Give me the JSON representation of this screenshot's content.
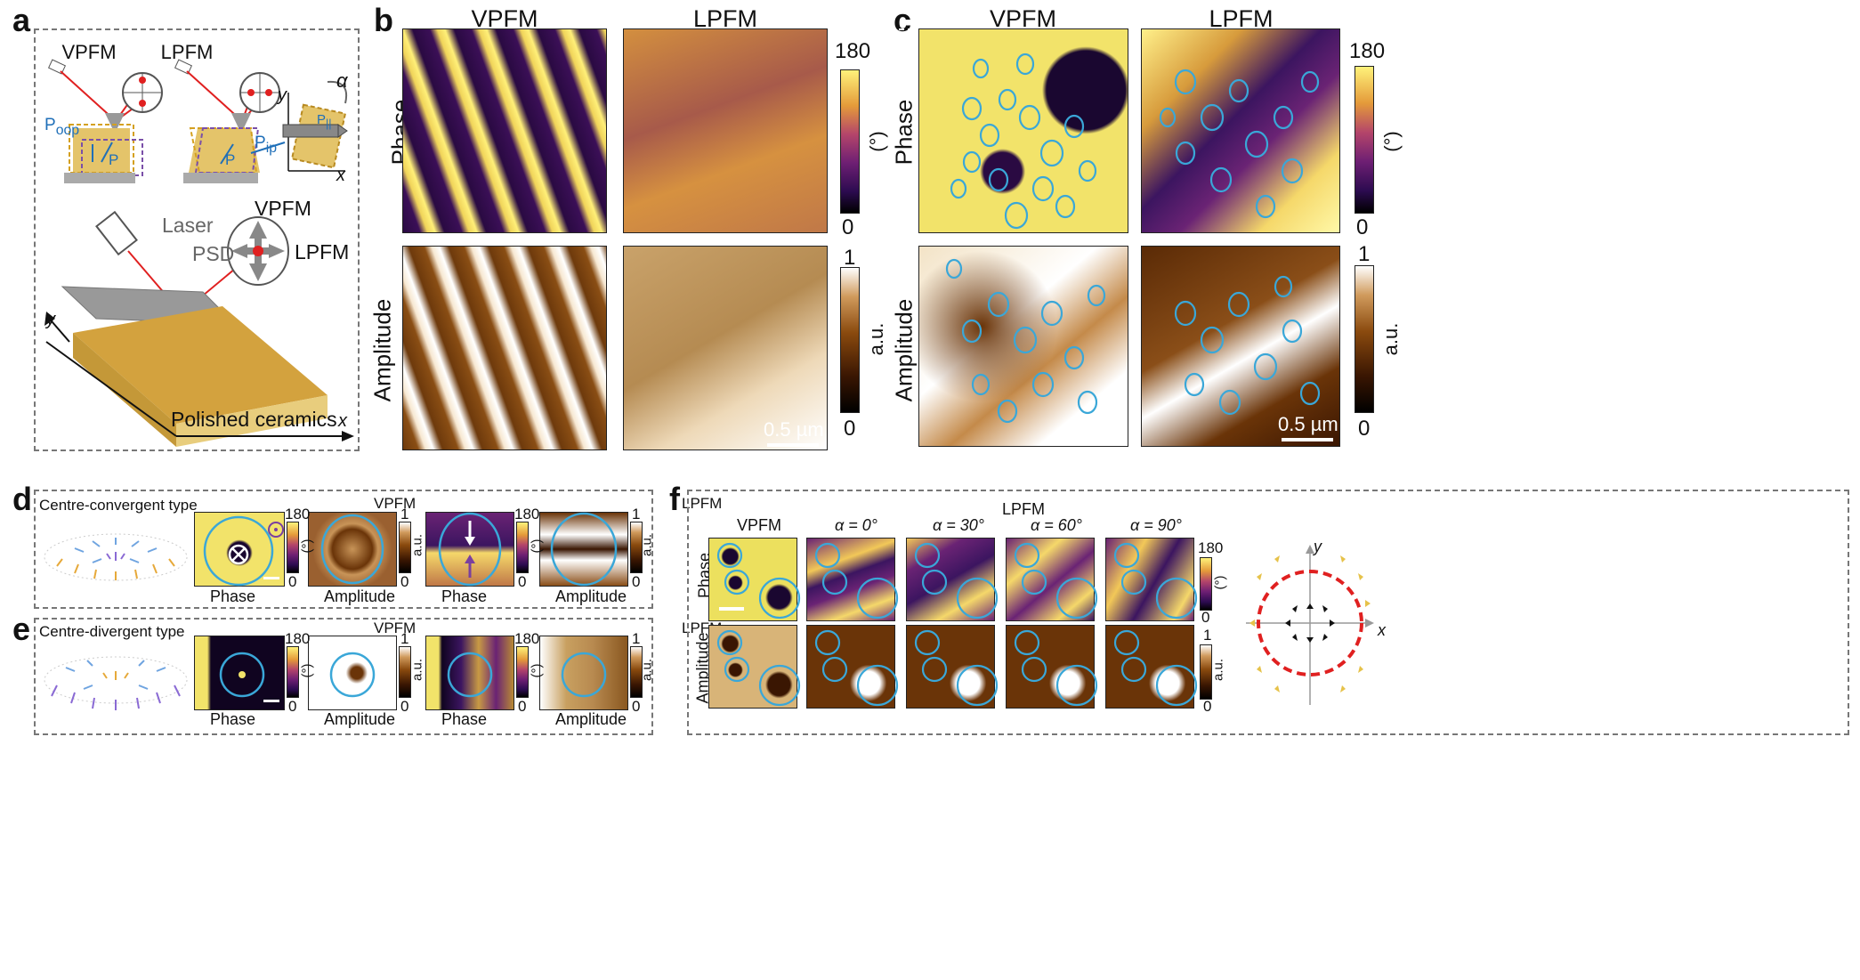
{
  "panels": {
    "a": {
      "label": "a",
      "mode_vpfm": "VPFM",
      "mode_lpfm": "LPFM",
      "p_oop": "P",
      "p_oop_sub": "oop",
      "p_ip": "P",
      "p_ip_sub": "ip",
      "p": "P",
      "p_par": "P",
      "p_par_sub": "||",
      "axis_y": "y",
      "axis_x": "x",
      "alpha": "α",
      "laser": "Laser",
      "psd": "PSD",
      "vpfm_arrow": "VPFM",
      "lpfm_arrow": "LPFM",
      "sample": "Polished ceramics",
      "axis_y2": "y",
      "axis_x2": "x"
    },
    "b": {
      "label": "b",
      "col1": "VPFM",
      "col2": "LPFM",
      "row1": "Phase",
      "row2": "Amplitude",
      "phase_max": "180",
      "phase_min": "0",
      "phase_unit": "(°)",
      "amp_max": "1",
      "amp_min": "0",
      "amp_unit": "a.u.",
      "scale": "0.5 µm"
    },
    "c": {
      "label": "c",
      "col1": "VPFM",
      "col2": "LPFM",
      "row1": "Phase",
      "row2": "Amplitude",
      "phase_max": "180",
      "phase_min": "0",
      "phase_unit": "(°)",
      "amp_max": "1",
      "amp_min": "0",
      "amp_unit": "a.u.",
      "scale": "0.5 µm"
    },
    "d": {
      "label": "d",
      "type": "Centre-convergent type",
      "vpfm": "VPFM",
      "lpfm": "LPFM",
      "phase1": "Phase",
      "amp1": "Amplitude",
      "phase2": "Phase",
      "amp2": "Amplitude",
      "cb1_max": "180",
      "cb1_min": "0",
      "cb1_unit": "(°)",
      "cb2_max": "1",
      "cb2_min": "0",
      "cb2_unit": "a.u.",
      "cb3_max": "180",
      "cb3_min": "0",
      "cb3_unit": "(°)",
      "cb4_max": "1",
      "cb4_min": "0",
      "cb4_unit": "a.u."
    },
    "e": {
      "label": "e",
      "type": "Centre-divergent type",
      "vpfm": "VPFM",
      "lpfm": "LPFM",
      "phase1": "Phase",
      "amp1": "Amplitude",
      "phase2": "Phase",
      "amp2": "Amplitude",
      "cb1_max": "180",
      "cb1_min": "0",
      "cb1_unit": "(°)",
      "cb2_max": "1",
      "cb2_min": "0",
      "cb2_unit": "a.u.",
      "cb3_max": "180",
      "cb3_min": "0",
      "cb3_unit": "(°)",
      "cb4_max": "1",
      "cb4_min": "0",
      "cb4_unit": "a.u."
    },
    "f": {
      "label": "f",
      "lpfm": "LPFM",
      "vpfm": "VPFM",
      "alpha0": "α = 0°",
      "alpha30": "α = 30°",
      "alpha60": "α = 60°",
      "alpha90": "α = 90°",
      "row1": "Phase",
      "row2": "Amplitude",
      "cb1_max": "180",
      "cb1_min": "0",
      "cb1_unit": "(°)",
      "cb2_max": "1",
      "cb2_min": "0",
      "cb2_unit": "a.u.",
      "axis_y": "y",
      "axis_x": "x"
    }
  },
  "colors": {
    "circle": "#3aa7d8",
    "dashed_red": "#e02020",
    "phase_high": "#f2e36a",
    "phase_low": "#1a0730"
  }
}
